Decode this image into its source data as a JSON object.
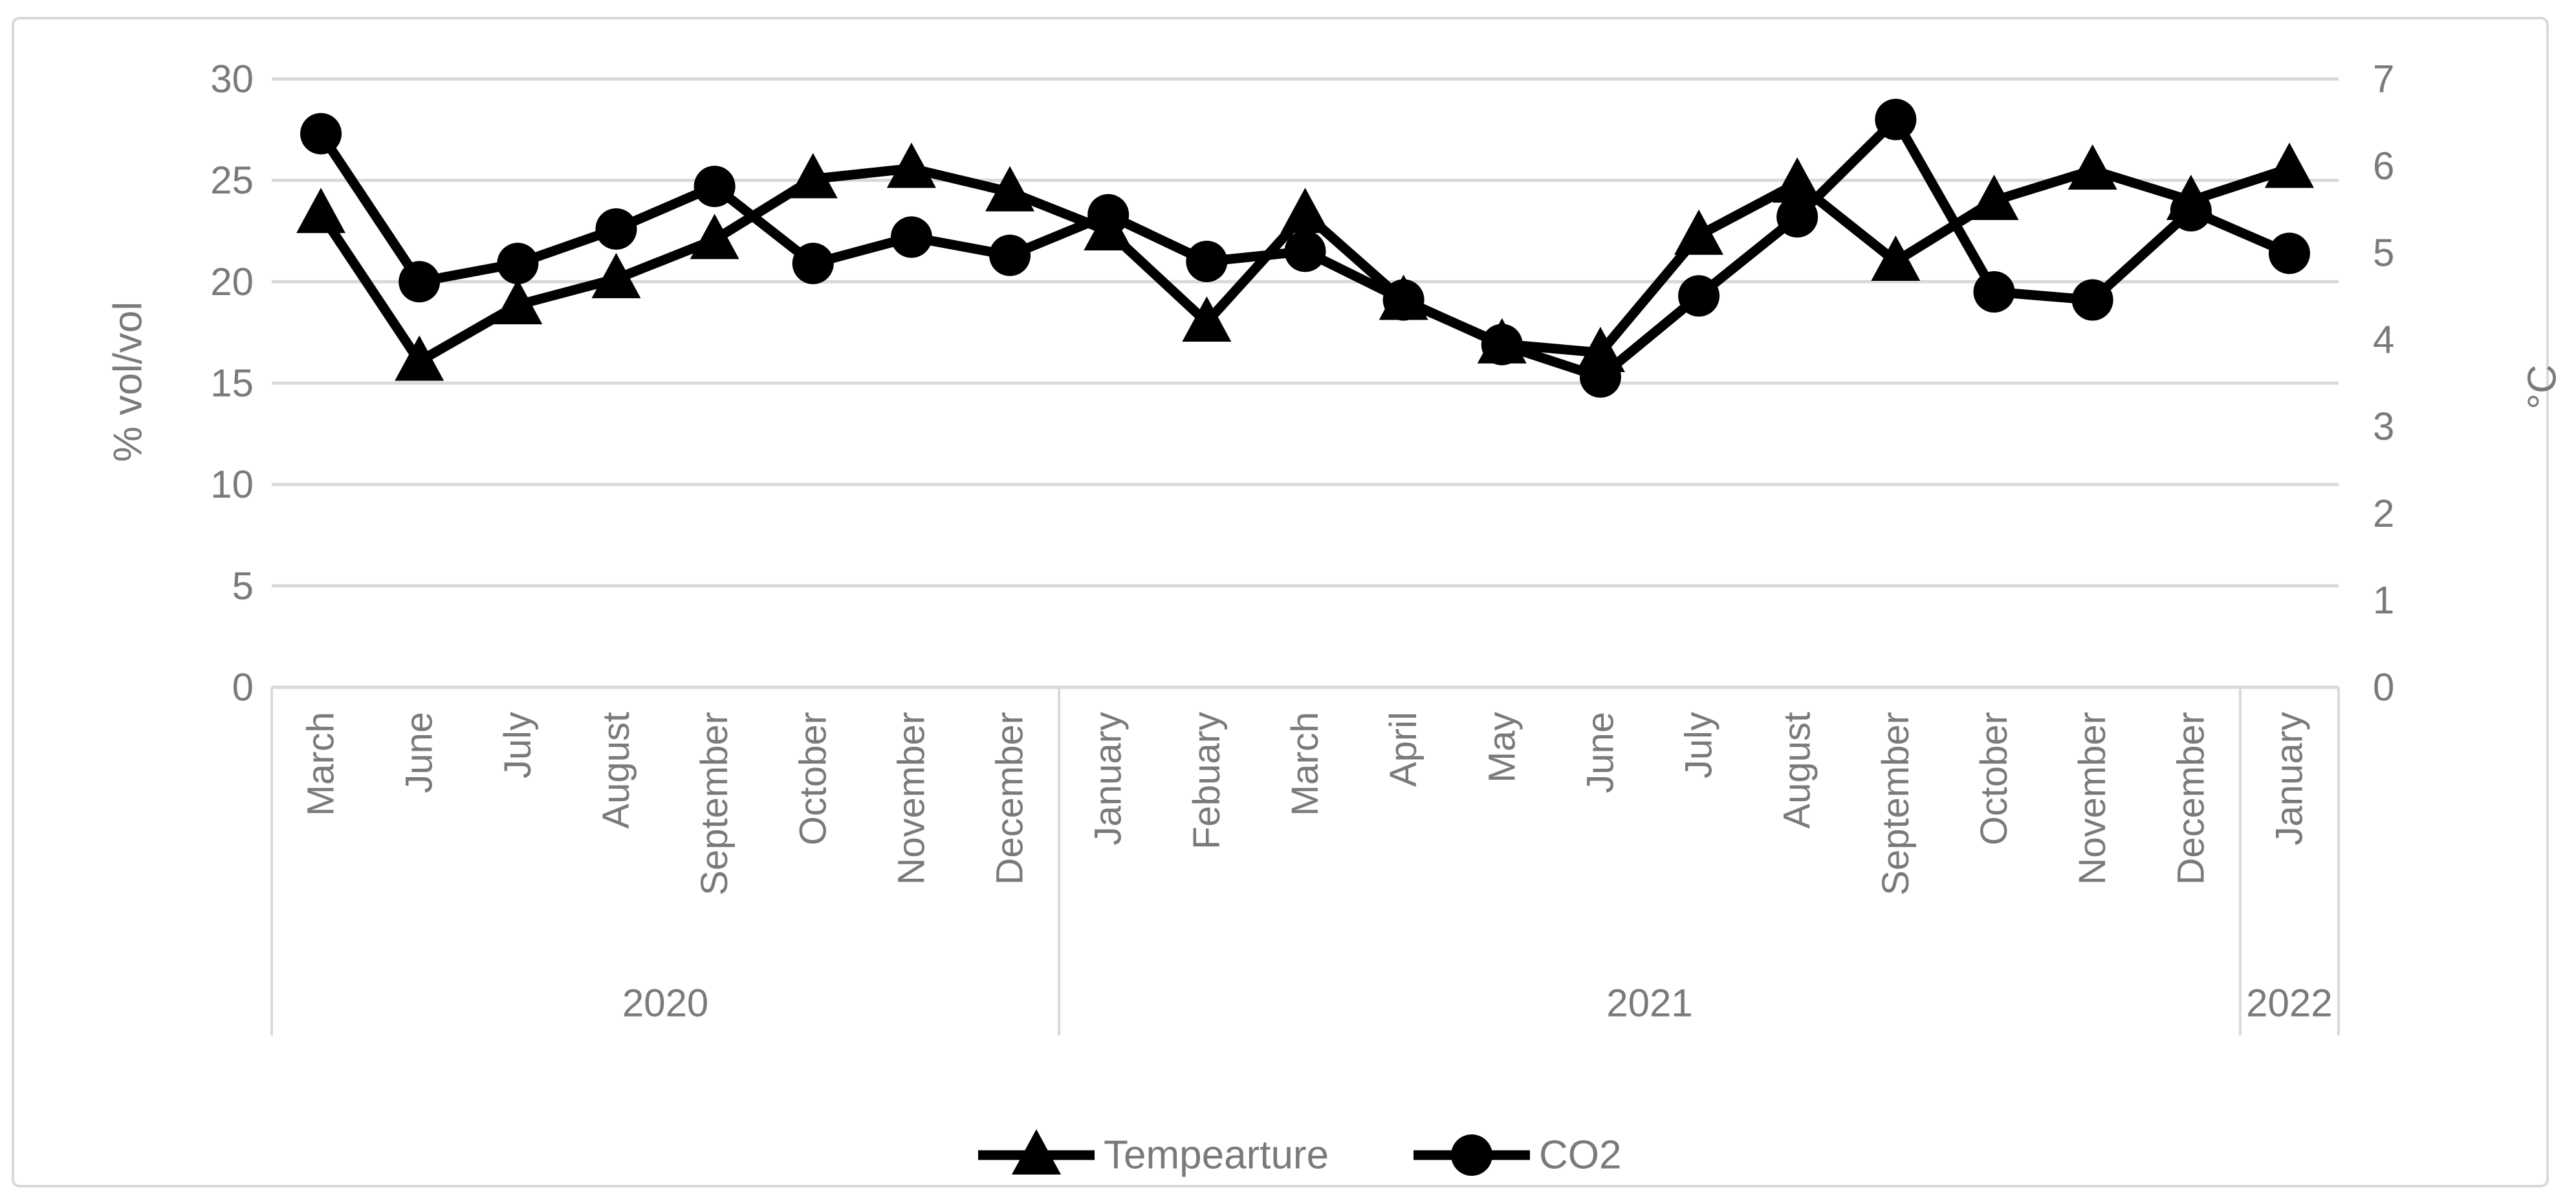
{
  "chart_data": {
    "type": "line",
    "title": "",
    "categories": [
      "March",
      "June",
      "July",
      "August",
      "September",
      "October",
      "November",
      "December",
      "January",
      "Febuary",
      "March",
      "April",
      "May",
      "June",
      "July",
      "August",
      "September",
      "October",
      "November",
      "December",
      "January"
    ],
    "year_groups": [
      {
        "label": "2020",
        "start_index": 0,
        "count": 8
      },
      {
        "label": "2021",
        "start_index": 8,
        "count": 12
      },
      {
        "label": "2022",
        "start_index": 20,
        "count": 1
      }
    ],
    "left_axis": {
      "title": "% vol/vol",
      "min": 0,
      "max": 30,
      "ticks": [
        0,
        5,
        10,
        15,
        20,
        25,
        30
      ]
    },
    "right_axis": {
      "title": "°C",
      "min": 0,
      "max": 7,
      "ticks": [
        0,
        1,
        2,
        3,
        4,
        5,
        6,
        7
      ]
    },
    "grid": true,
    "legend_position": "bottom",
    "series": [
      {
        "name": "Tempearture",
        "axis": "right",
        "marker": "triangle",
        "color": "#000000",
        "values": [
          5.45,
          3.75,
          4.4,
          4.7,
          5.15,
          5.85,
          5.97,
          5.7,
          5.25,
          4.2,
          5.45,
          4.45,
          3.95,
          3.85,
          5.2,
          5.8,
          4.9,
          5.6,
          5.95,
          5.6,
          5.97
        ]
      },
      {
        "name": "CO2",
        "axis": "left",
        "marker": "circle",
        "color": "#000000",
        "values": [
          27.3,
          20.0,
          20.9,
          22.6,
          24.7,
          20.9,
          22.2,
          21.3,
          23.3,
          21.0,
          21.5,
          19.1,
          16.9,
          15.3,
          19.3,
          23.2,
          28.0,
          19.5,
          19.1,
          23.5,
          21.4
        ]
      }
    ]
  },
  "colors": {
    "grid": "#d9d9d9",
    "axis_text": "#7a7a7a",
    "series": "#000000",
    "background": "#ffffff",
    "frame_border": "#d9d9d9"
  }
}
